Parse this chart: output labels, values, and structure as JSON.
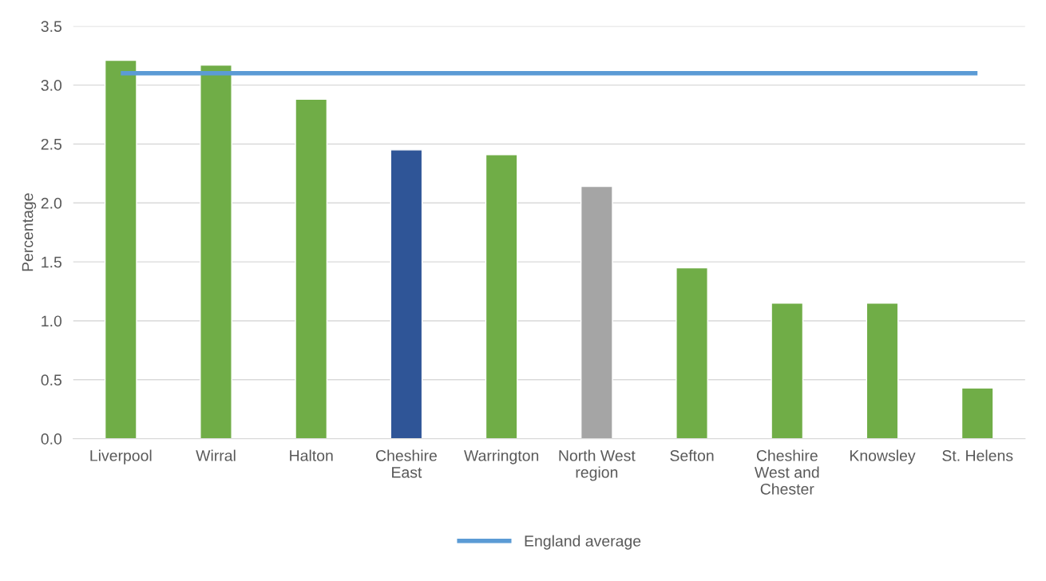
{
  "chart_data": {
    "type": "bar",
    "ylabel": "Percentage",
    "categories": [
      "Liverpool",
      "Wirral",
      "Halton",
      "Cheshire\nEast",
      "Warrington",
      "North West\nregion",
      "Sefton",
      "Cheshire\nWest and\nChester",
      "Knowsley",
      "St. Helens"
    ],
    "series": [
      {
        "colors": [
          "#70ad47",
          "#70ad47",
          "#70ad47",
          "#2f5597",
          "#70ad47",
          "#a5a5a5",
          "#70ad47",
          "#70ad47",
          "#70ad47",
          "#70ad47"
        ],
        "values": [
          3.21,
          3.17,
          2.88,
          2.45,
          2.41,
          2.14,
          1.45,
          1.15,
          1.15,
          0.43
        ]
      },
      {
        "type": "line",
        "name": "England average",
        "color": "#5b9bd5",
        "values": [
          3.1,
          3.1,
          3.1,
          3.1,
          3.1,
          3.1,
          3.1,
          3.1,
          3.1,
          3.1
        ]
      }
    ],
    "ylim": [
      0,
      3.5
    ],
    "yticks": [
      {
        "value": 0,
        "label": "0.0"
      },
      {
        "value": 0.5,
        "label": "0.5"
      },
      {
        "value": 1,
        "label": "1.0"
      },
      {
        "value": 1.5,
        "label": "1.5"
      },
      {
        "value": 2,
        "label": "2.0"
      },
      {
        "value": 2.5,
        "label": "2.5"
      },
      {
        "value": 3,
        "label": "3.0"
      },
      {
        "value": 3.5,
        "label": "3.5"
      }
    ],
    "grid": "y",
    "legend": "bottom"
  }
}
